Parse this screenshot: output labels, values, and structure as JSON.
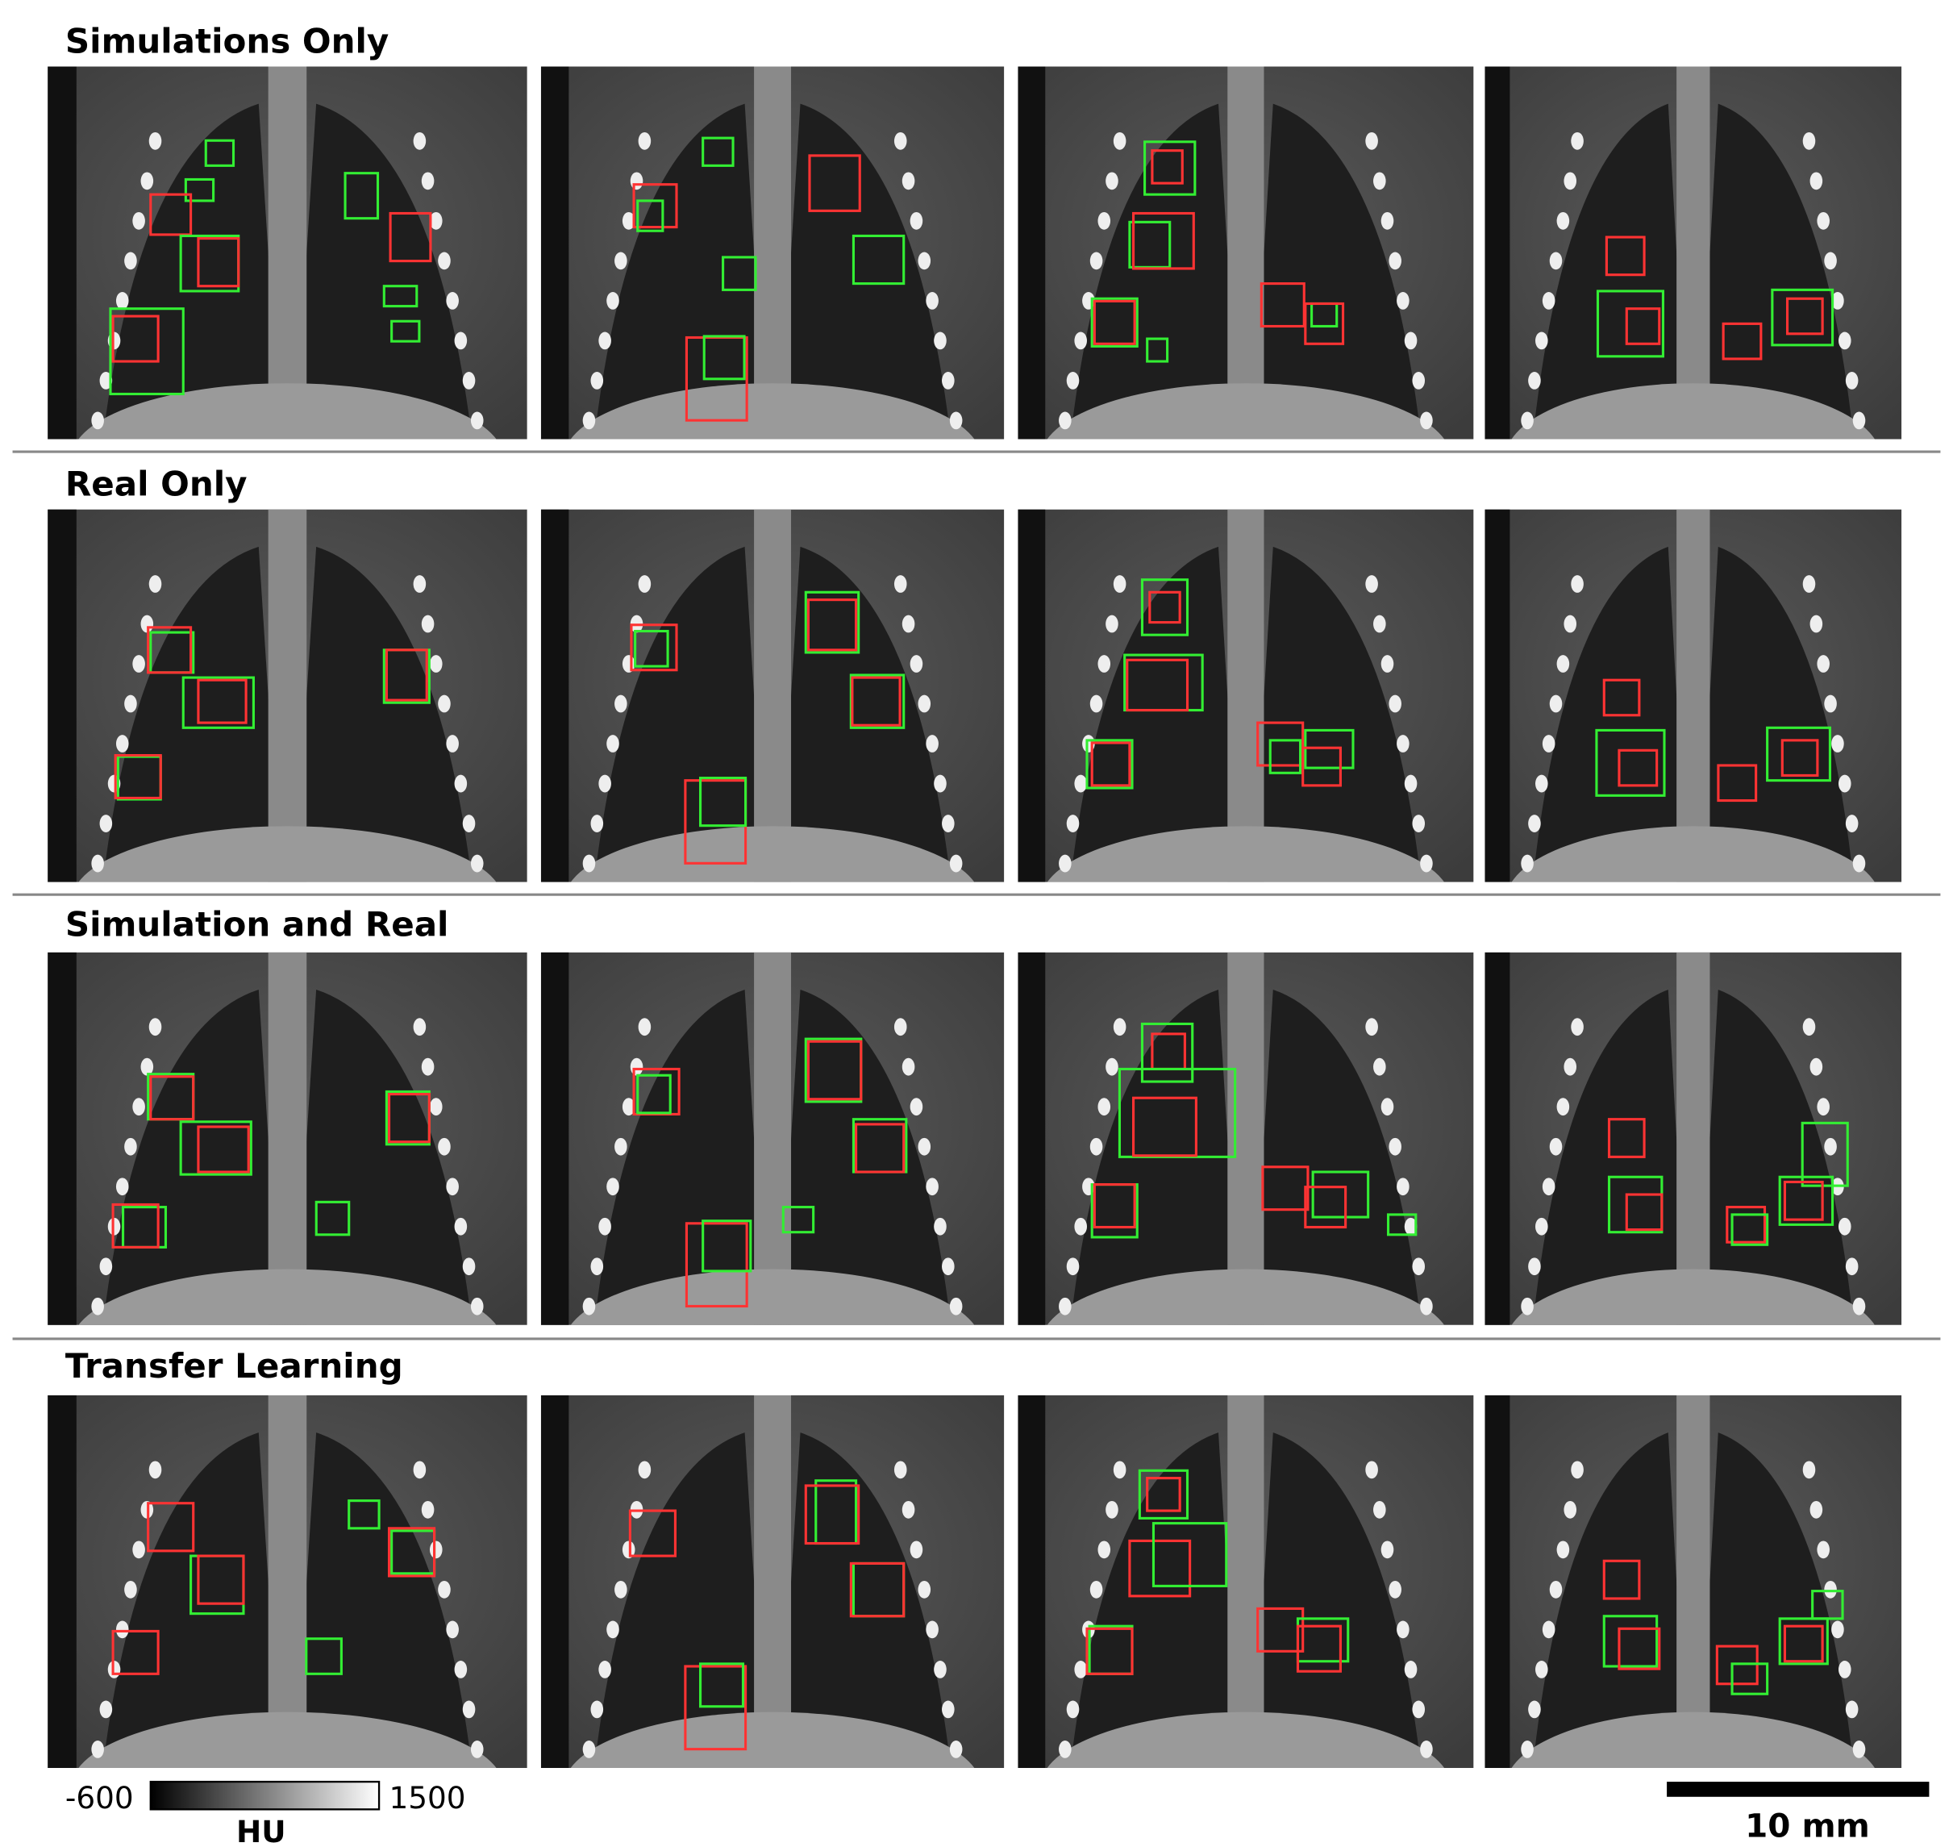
{
  "rows": [
    {
      "title": "Simulations Only"
    },
    {
      "title": "Real Only"
    },
    {
      "title": "Simulation and Real"
    },
    {
      "title": "Transfer Learning"
    }
  ],
  "colorbar": {
    "min": -600,
    "max": 1500,
    "unit": "HU"
  },
  "scale_bar": {
    "label": "10 mm"
  }
}
